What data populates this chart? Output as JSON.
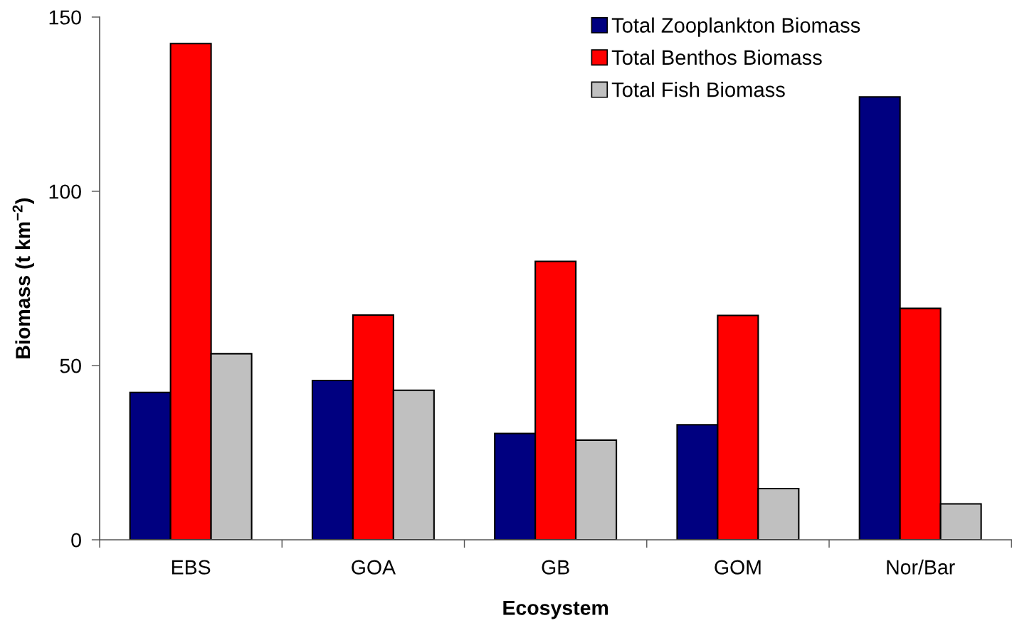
{
  "chart_data": {
    "type": "bar",
    "xlabel": "Ecosystem",
    "ylabel": "Biomass (t km$^{−2}$)",
    "categories": [
      "EBS",
      "GOA",
      "GB",
      "GOM",
      "Nor/Bar"
    ],
    "series": [
      {
        "name": "Total Zooplankton Biomass",
        "color": "#000080",
        "values": [
          42.3,
          45.7,
          30.5,
          33.0,
          127.1
        ]
      },
      {
        "name": "Total Benthos Biomass",
        "color": "#ff0000",
        "values": [
          142.4,
          64.5,
          79.9,
          64.4,
          66.4
        ]
      },
      {
        "name": "Total Fish Biomass",
        "color": "#c0c0c0",
        "values": [
          53.4,
          42.9,
          28.6,
          14.7,
          10.3
        ]
      }
    ],
    "ylim": [
      0,
      150
    ],
    "yticks": [
      0,
      50,
      100,
      150
    ],
    "grid": false,
    "legend": "top right"
  }
}
